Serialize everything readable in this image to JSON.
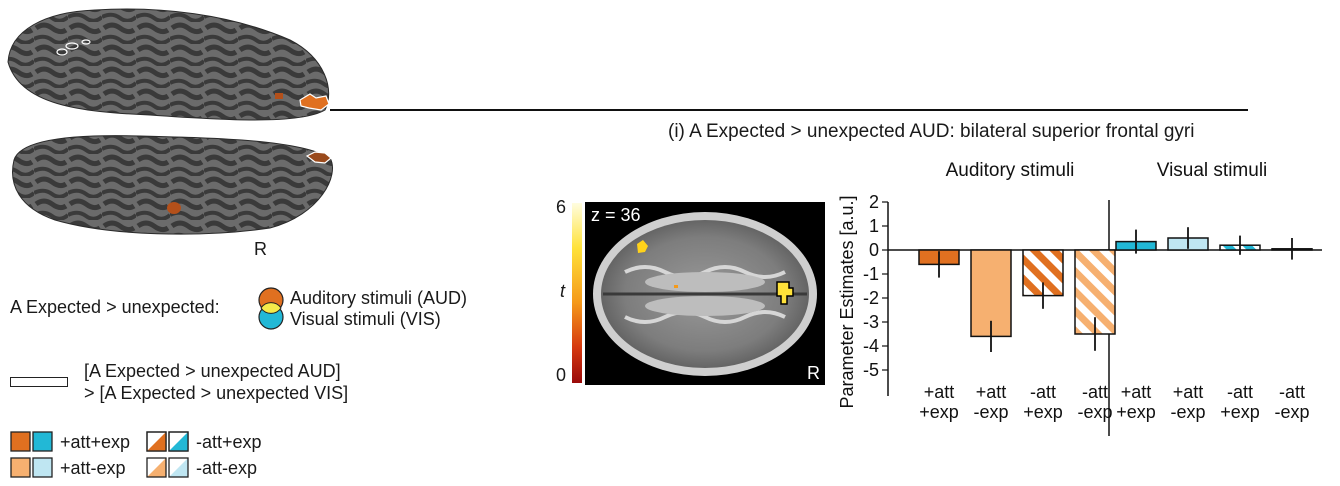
{
  "brain": {
    "hemisphere_label": "R",
    "contrast_prefix": "A Expected > unexpected:",
    "overlap_auditory": "Auditory stimuli (AUD)",
    "overlap_visual": "Visual stimuli (VIS)",
    "diff_line1": "[A Expected > unexpected AUD]",
    "diff_line2": " > [A Expected > unexpected VIS]"
  },
  "condition_legend": {
    "items": [
      {
        "label": "+att+exp"
      },
      {
        "label": "-att+exp"
      },
      {
        "label": "+att-exp"
      },
      {
        "label": "-att-exp"
      }
    ]
  },
  "axial_slice": {
    "z_label": "z = 36",
    "side_label": "R",
    "colorbar_max": "6",
    "colorbar_min": "0",
    "colorbar_title": "t"
  },
  "colors": {
    "auditory_strong": "#e07020",
    "auditory_light": "#f6b070",
    "visual_strong": "#22b8d6",
    "visual_light": "#bfe6f2"
  },
  "chart_data": {
    "type": "bar",
    "title": "(i) A Expected > unexpected AUD: bilateral superior frontal gyri",
    "ylabel": "Parameter Estimates [a.u.]",
    "ylim": [
      -5.5,
      2.5
    ],
    "yticks": [
      "2",
      "1",
      "0",
      "-1",
      "-2",
      "-3",
      "-4",
      "-5"
    ],
    "groups": [
      {
        "name": "Auditory stimuli",
        "categories": [
          "+att\n+exp",
          "+att\n-exp",
          "-att\n+exp",
          "-att\n-exp"
        ],
        "values": [
          -0.6,
          -3.6,
          -1.9,
          -3.5
        ],
        "errors": [
          0.55,
          0.65,
          0.55,
          0.7
        ]
      },
      {
        "name": "Visual stimuli",
        "categories": [
          "+att\n+exp",
          "+att\n-exp",
          "-att\n+exp",
          "-att\n-exp"
        ],
        "values": [
          0.35,
          0.5,
          0.2,
          0.05
        ],
        "errors": [
          0.5,
          0.45,
          0.4,
          0.45
        ]
      }
    ]
  }
}
